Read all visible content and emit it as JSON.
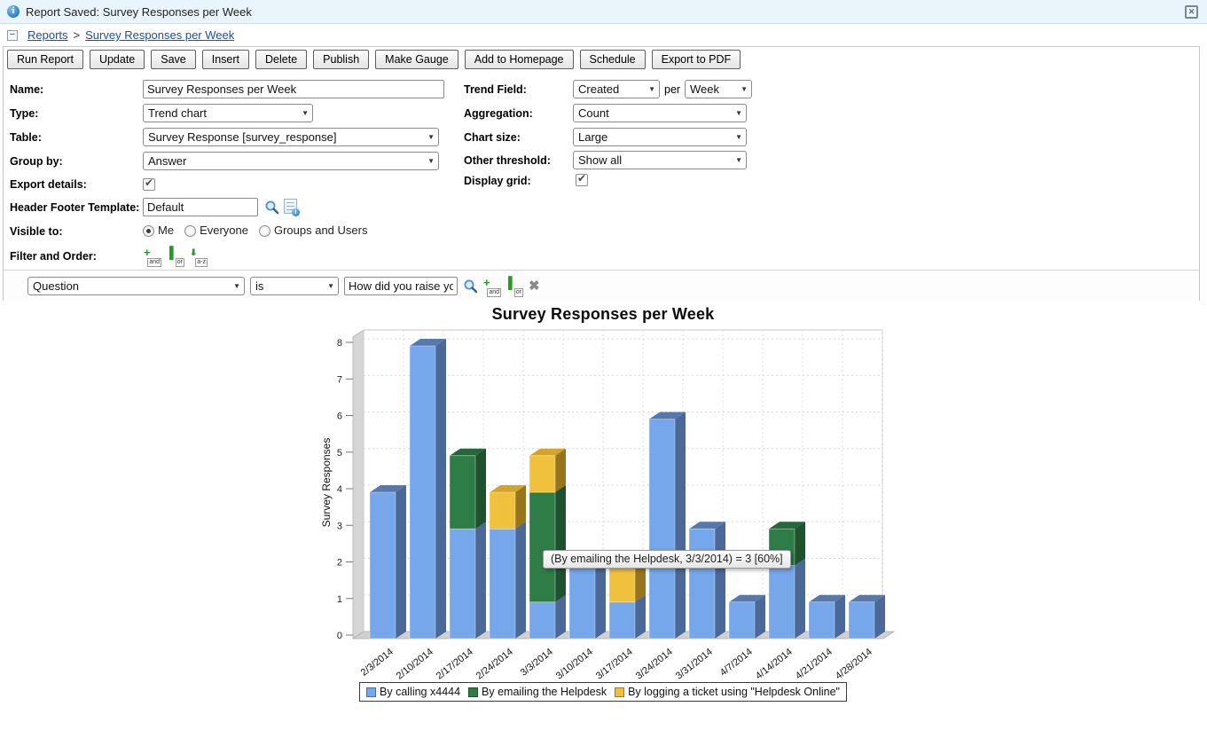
{
  "notification": {
    "text": "Report Saved: Survey Responses per Week"
  },
  "breadcrumb": {
    "collapse_glyph": "−",
    "items": [
      "Reports",
      "Survey Responses per Week"
    ],
    "separator": ">"
  },
  "toolbar": {
    "buttons": [
      "Run Report",
      "Update",
      "Save",
      "Insert",
      "Delete",
      "Publish",
      "Make Gauge",
      "Add to Homepage",
      "Schedule",
      "Export to PDF"
    ]
  },
  "close_glyph": "✕",
  "form": {
    "name": {
      "label": "Name:",
      "value": "Survey Responses per Week"
    },
    "type": {
      "label": "Type:",
      "value": "Trend chart"
    },
    "table": {
      "label": "Table:",
      "value": "Survey Response [survey_response]"
    },
    "group_by": {
      "label": "Group by:",
      "value": "Answer"
    },
    "export_details": {
      "label": "Export details:",
      "checked": true
    },
    "header_footer_template": {
      "label": "Header Footer Template:",
      "value": "Default"
    },
    "visible_to": {
      "label": "Visible to:",
      "options": [
        "Me",
        "Everyone",
        "Groups and Users"
      ],
      "selected": "Me"
    },
    "filter_and_order": {
      "label": "Filter and Order:",
      "icons": [
        "and",
        "or",
        "a-z"
      ]
    },
    "trend_field": {
      "label": "Trend Field:",
      "value": "Created",
      "separator": "per",
      "interval": "Week"
    },
    "aggregation": {
      "label": "Aggregation:",
      "value": "Count"
    },
    "chart_size": {
      "label": "Chart size:",
      "value": "Large"
    },
    "other_threshold": {
      "label": "Other threshold:",
      "value": "Show all"
    },
    "display_grid": {
      "label": "Display grid:",
      "checked": true
    }
  },
  "filter_row": {
    "field": "Question",
    "operator": "is",
    "value": "How did you raise your"
  },
  "chart_data": {
    "type": "bar",
    "stacked": true,
    "effect": "3d",
    "title": "Survey Responses per Week",
    "xlabel": "",
    "ylabel": "Survey Responses",
    "ylim": [
      0,
      8
    ],
    "yticks": [
      0,
      1,
      2,
      3,
      4,
      5,
      6,
      7,
      8
    ],
    "grid": true,
    "legend_position": "bottom",
    "categories": [
      "2/3/2014",
      "2/10/2014",
      "2/17/2014",
      "2/24/2014",
      "3/3/2014",
      "3/10/2014",
      "3/17/2014",
      "3/24/2014",
      "3/31/2014",
      "4/7/2014",
      "4/14/2014",
      "4/21/2014",
      "4/28/2014"
    ],
    "series": [
      {
        "name": "By calling x4444",
        "color": "#76a7ea",
        "top": "#5578ad",
        "side": "#4a6898",
        "values": [
          4,
          8,
          3,
          3,
          1,
          2,
          1,
          6,
          3,
          1,
          2,
          1,
          1
        ]
      },
      {
        "name": "By emailing the Helpdesk",
        "color": "#2e7d46",
        "top": "#25663a",
        "side": "#1e522f",
        "values": [
          0,
          0,
          2,
          0,
          3,
          0,
          0,
          0,
          0,
          0,
          1,
          0,
          0
        ]
      },
      {
        "name": "By logging a ticket using \"Helpdesk Online\"",
        "color": "#efc13c",
        "top": "#d2a42a",
        "side": "#97761b",
        "values": [
          0,
          0,
          0,
          1,
          1,
          0,
          1,
          0,
          0,
          0,
          0,
          0,
          0
        ]
      }
    ],
    "tooltip": {
      "text": "(By emailing the Helpdesk, 3/3/2014) = 3 [60%]"
    }
  }
}
